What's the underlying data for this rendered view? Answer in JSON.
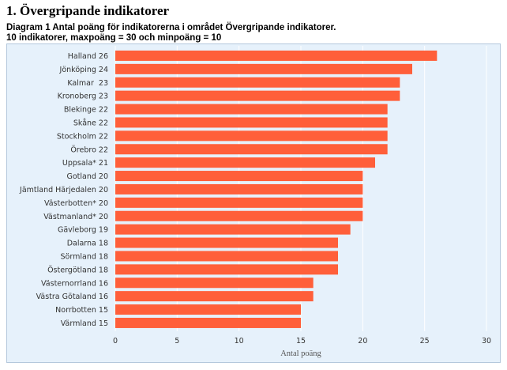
{
  "page": {
    "title": "1. Övergripande indikatorer",
    "caption_line1": "Diagram 1 Antal poäng för indikatorerna i området Övergripande indikatorer.",
    "caption_line2": "10 indikatorer, maxpoäng = 30 och minpoäng = 10"
  },
  "colors": {
    "bar": "#ff5f3a",
    "plot_background": "#e6f1fb",
    "gridline": "#ffffff"
  },
  "chart_data": {
    "type": "bar",
    "orientation": "horizontal",
    "categories": [
      "Halland 26",
      "Jönköping 24",
      "Kalmar  23",
      "Kronoberg 23",
      "Blekinge 22",
      "Skåne 22",
      "Stockholm 22",
      "Örebro 22",
      "Uppsala* 21",
      "Gotland 20",
      "Jämtland Härjedalen 20",
      "Västerbotten* 20",
      "Västmanland* 20",
      "Gävleborg 19",
      "Dalarna 18",
      "Sörmland 18",
      "Östergötland 18",
      "Västernorrland 16",
      "Västra Götaland 16",
      "Norrbotten 15",
      "Värmland 15"
    ],
    "values": [
      26,
      24,
      23,
      23,
      22,
      22,
      22,
      22,
      21,
      20,
      20,
      20,
      20,
      19,
      18,
      18,
      18,
      16,
      16,
      15,
      15
    ],
    "xlabel": "Antal poäng",
    "xlim": [
      0,
      30
    ],
    "xticks": [
      "0",
      "5",
      "10",
      "15",
      "20",
      "25",
      "30"
    ],
    "grid": true
  }
}
